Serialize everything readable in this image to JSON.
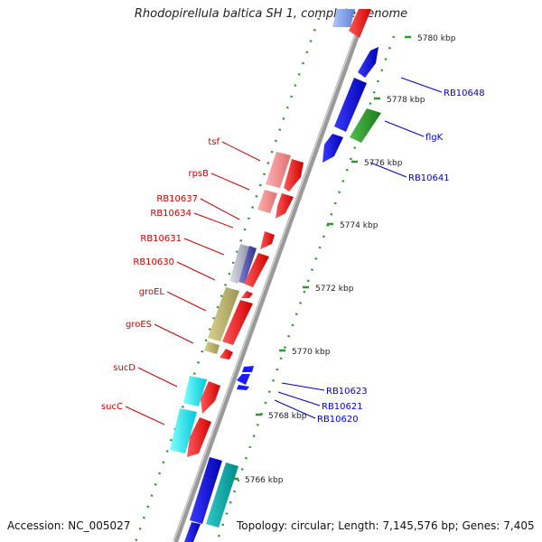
{
  "title": "Rhodopirellula baltica SH 1, complete genome",
  "accession": "Accession: NC_005027",
  "summary": "Topology: circular; Length: 7,145,576 bp; Genes: 7,405",
  "colors": {
    "backbone": "#888888",
    "forward_gene": "#ff0000",
    "reverse_gene": "#0000ff",
    "left_labels": "#cc0000",
    "right_labels": "#0000cc",
    "ticks": "#228822"
  },
  "ticks": [
    {
      "label": "5780 kbp"
    },
    {
      "label": "5778 kbp"
    },
    {
      "label": "5776 kbp"
    },
    {
      "label": "5774 kbp"
    },
    {
      "label": "5772 kbp"
    },
    {
      "label": "5770 kbp"
    },
    {
      "label": "5768 kbp"
    },
    {
      "label": "5766 kbp"
    }
  ],
  "left_labels": [
    {
      "text": "tsf"
    },
    {
      "text": "rpsB"
    },
    {
      "text": "RB10637"
    },
    {
      "text": "RB10634"
    },
    {
      "text": "RB10631"
    },
    {
      "text": "RB10630"
    },
    {
      "text": "groEL"
    },
    {
      "text": "groES"
    },
    {
      "text": "sucD"
    },
    {
      "text": "sucC"
    }
  ],
  "right_labels": [
    {
      "text": "RB10648"
    },
    {
      "text": "flgK"
    },
    {
      "text": "RB10641"
    },
    {
      "text": "RB10623"
    },
    {
      "text": "RB10621"
    },
    {
      "text": "RB10620"
    }
  ]
}
